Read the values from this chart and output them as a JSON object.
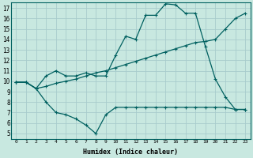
{
  "xlabel": "Humidex (Indice chaleur)",
  "bg_color": "#c8e8e0",
  "grid_color": "#a8cccc",
  "line_color": "#006060",
  "xlim": [
    -0.5,
    23.5
  ],
  "ylim": [
    4.5,
    17.5
  ],
  "xticks": [
    0,
    1,
    2,
    3,
    4,
    5,
    6,
    7,
    8,
    9,
    10,
    11,
    12,
    13,
    14,
    15,
    16,
    17,
    18,
    19,
    20,
    21,
    22,
    23
  ],
  "yticks": [
    5,
    6,
    7,
    8,
    9,
    10,
    11,
    12,
    13,
    14,
    15,
    16,
    17
  ],
  "line1_x": [
    0,
    1,
    2,
    3,
    4,
    5,
    6,
    7,
    8,
    9,
    10,
    11,
    12,
    13,
    14,
    15,
    16,
    17,
    18,
    19,
    20,
    21,
    22,
    23
  ],
  "line1_y": [
    9.9,
    9.9,
    9.3,
    10.5,
    11.0,
    10.5,
    10.5,
    10.8,
    10.5,
    10.5,
    12.5,
    14.3,
    14.0,
    16.3,
    16.3,
    17.4,
    17.3,
    16.5,
    16.5,
    13.3,
    10.2,
    8.5,
    7.3,
    7.3
  ],
  "line2_x": [
    0,
    1,
    2,
    3,
    4,
    5,
    6,
    7,
    8,
    9,
    10,
    11,
    12,
    13,
    14,
    15,
    16,
    17,
    18,
    19,
    20,
    21,
    22,
    23
  ],
  "line2_y": [
    9.9,
    9.9,
    9.3,
    9.5,
    9.8,
    10.0,
    10.2,
    10.5,
    10.8,
    11.0,
    11.3,
    11.6,
    11.9,
    12.2,
    12.5,
    12.8,
    13.1,
    13.4,
    13.7,
    13.8,
    14.0,
    15.0,
    16.0,
    16.5
  ],
  "line3_x": [
    0,
    1,
    2,
    3,
    4,
    5,
    6,
    7,
    8,
    9,
    10,
    11,
    12,
    13,
    14,
    15,
    16,
    17,
    18,
    19,
    20,
    21,
    22,
    23
  ],
  "line3_y": [
    9.9,
    9.9,
    9.3,
    8.0,
    7.0,
    6.8,
    6.4,
    5.8,
    5.0,
    6.8,
    7.5,
    7.5,
    7.5,
    7.5,
    7.5,
    7.5,
    7.5,
    7.5,
    7.5,
    7.5,
    7.5,
    7.5,
    7.3,
    7.3
  ]
}
